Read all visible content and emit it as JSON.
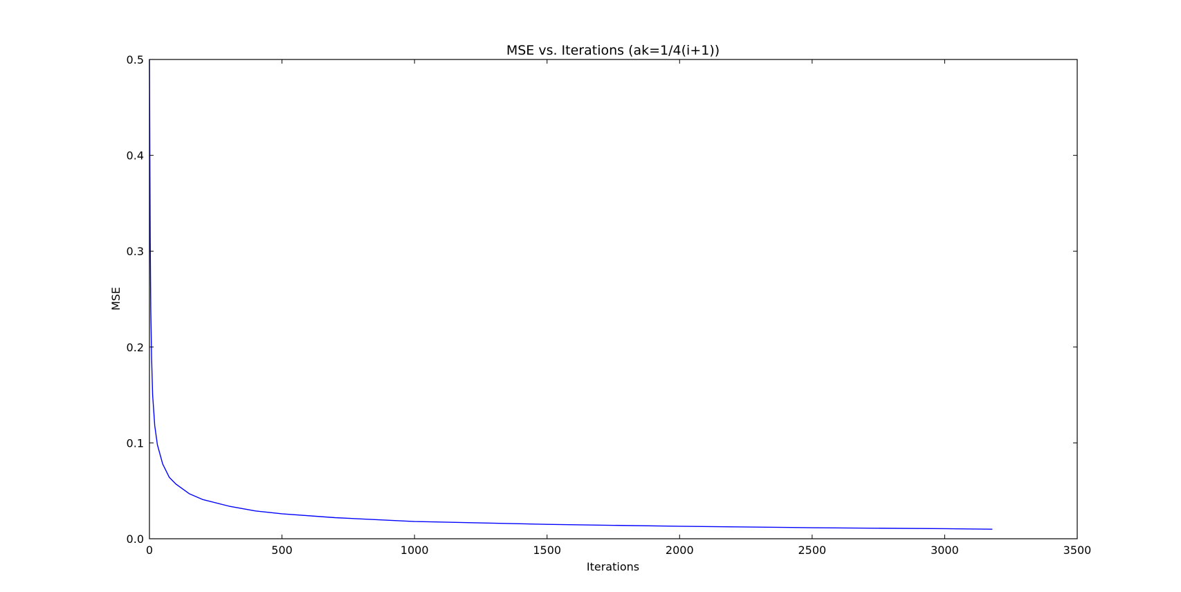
{
  "chart_data": {
    "type": "line",
    "title": "MSE vs. Iterations (ak=1/4(i+1))",
    "xlabel": "Iterations",
    "ylabel": "MSE",
    "xlim": [
      0,
      3500
    ],
    "ylim": [
      0.0,
      0.5
    ],
    "xticks": [
      0,
      500,
      1000,
      1500,
      2000,
      2500,
      3000,
      3500
    ],
    "xtick_labels": [
      "0",
      "500",
      "1000",
      "1500",
      "2000",
      "2500",
      "3000",
      "3500"
    ],
    "yticks": [
      0.0,
      0.1,
      0.2,
      0.3,
      0.4,
      0.5
    ],
    "ytick_labels": [
      "0.0",
      "0.1",
      "0.2",
      "0.3",
      "0.4",
      "0.5"
    ],
    "grid": false,
    "series": [
      {
        "color": "#0000ff",
        "x": [
          0,
          1,
          2,
          3,
          5,
          8,
          12,
          20,
          30,
          50,
          75,
          100,
          150,
          200,
          300,
          400,
          500,
          700,
          1000,
          1500,
          2000,
          2500,
          3000,
          3180
        ],
        "y": [
          0.5,
          0.44,
          0.37,
          0.31,
          0.24,
          0.19,
          0.15,
          0.118,
          0.098,
          0.078,
          0.064,
          0.057,
          0.047,
          0.041,
          0.034,
          0.029,
          0.026,
          0.022,
          0.018,
          0.015,
          0.013,
          0.0115,
          0.0105,
          0.01
        ]
      }
    ]
  }
}
